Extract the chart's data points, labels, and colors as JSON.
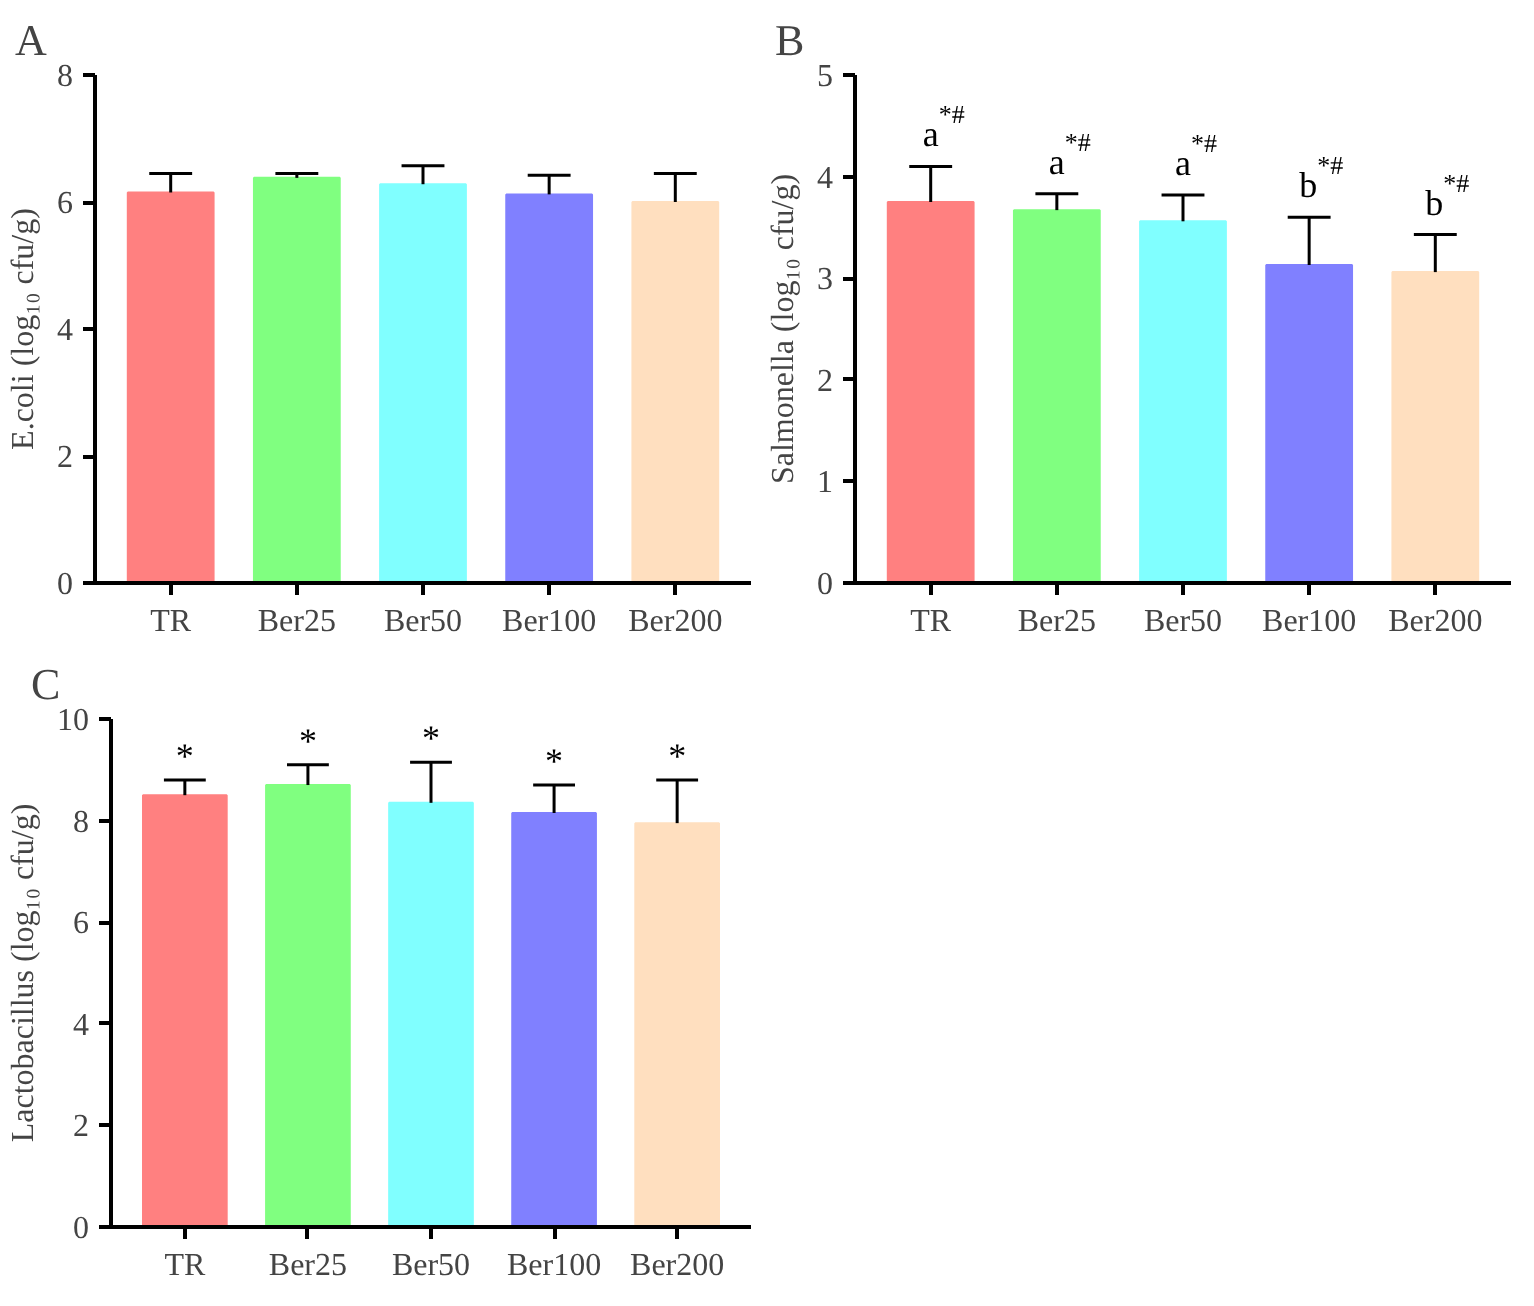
{
  "chart_data": [
    {
      "type": "bar",
      "title": "A",
      "ylabel": "E.coli (log₁₀ cfu/g)",
      "categories": [
        "TR",
        "Ber25",
        "Ber50",
        "Ber100",
        "Ber200"
      ],
      "colors": [
        "#ff8080",
        "#80ff80",
        "#80ffff",
        "#8080ff",
        "#ffdfbf"
      ],
      "values": [
        6.15,
        6.38,
        6.28,
        6.12,
        6.0
      ],
      "errors": [
        [
          6.15,
          6.45
        ],
        [
          6.38,
          6.45
        ],
        [
          6.28,
          6.57
        ],
        [
          6.12,
          6.42
        ],
        [
          6.0,
          6.45
        ]
      ],
      "ylim": [
        0,
        8
      ],
      "yticks": [
        0,
        2,
        4,
        6,
        8
      ],
      "grid": false
    },
    {
      "type": "bar",
      "title": "B",
      "ylabel": "Salmonella (log₁₀ cfu/g)",
      "categories": [
        "TR",
        "Ber25",
        "Ber50",
        "Ber100",
        "Ber200"
      ],
      "colors": [
        "#ff8080",
        "#80ff80",
        "#80ffff",
        "#8080ff",
        "#ffdfbf"
      ],
      "values": [
        3.75,
        3.67,
        3.56,
        3.13,
        3.06
      ],
      "errors": [
        [
          3.75,
          4.1
        ],
        [
          3.67,
          3.83
        ],
        [
          3.56,
          3.82
        ],
        [
          3.13,
          3.6
        ],
        [
          3.06,
          3.43
        ]
      ],
      "annotations": [
        "a$^{*#}$",
        "a$^{*#}$",
        "a$^{*#}$",
        "b$^{*#}$",
        "b$^{*#}$"
      ],
      "ylim": [
        0,
        5
      ],
      "yticks": [
        0,
        1,
        2,
        3,
        4,
        5
      ],
      "grid": false
    },
    {
      "type": "bar",
      "title": "C",
      "ylabel": "Lactobacillus (log₁₀ cfu/g)",
      "categories": [
        "TR",
        "Ber25",
        "Ber50",
        "Ber100",
        "Ber200"
      ],
      "colors": [
        "#ff8080",
        "#80ff80",
        "#80ffff",
        "#8080ff",
        "#ffdfbf"
      ],
      "values": [
        8.5,
        8.7,
        8.35,
        8.15,
        7.95
      ],
      "errors": [
        [
          8.5,
          8.8
        ],
        [
          8.7,
          9.1
        ],
        [
          8.35,
          9.15
        ],
        [
          8.15,
          8.7
        ],
        [
          7.95,
          8.8
        ]
      ],
      "annotations": [
        "*",
        "*",
        "*",
        "*",
        "*"
      ],
      "ylim": [
        0,
        10
      ],
      "yticks": [
        0,
        2,
        4,
        6,
        8,
        10
      ],
      "grid": false
    }
  ]
}
